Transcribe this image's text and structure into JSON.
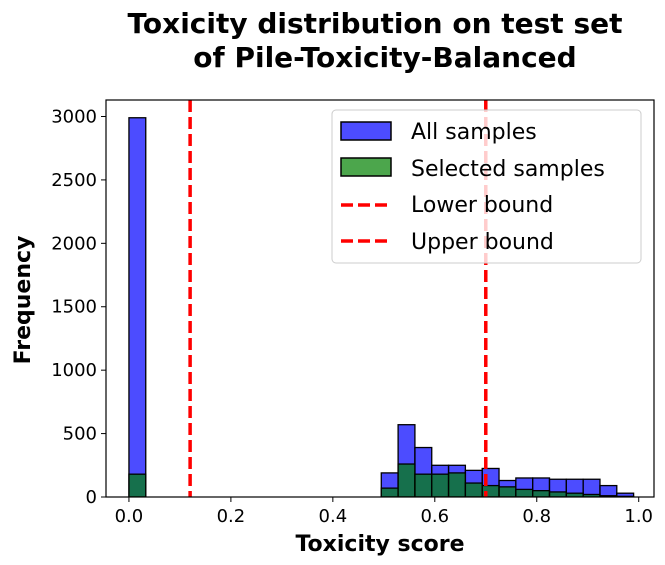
{
  "chart_data": {
    "type": "bar",
    "title_lines": [
      "Toxicity distribution on test set",
      "of Pile-Toxicity-Balanced"
    ],
    "xlabel": "Toxicity score",
    "ylabel": "Frequency",
    "xlim": [
      -0.045,
      1.03
    ],
    "ylim": [
      0,
      3130
    ],
    "xticks": [
      0.0,
      0.2,
      0.4,
      0.6,
      0.8,
      1.0
    ],
    "xtick_labels": [
      "0.0",
      "0.2",
      "0.4",
      "0.6",
      "0.8",
      "1.0"
    ],
    "yticks": [
      0,
      500,
      1000,
      1500,
      2000,
      2500,
      3000
    ],
    "ytick_labels": [
      "0",
      "500",
      "1000",
      "1500",
      "2000",
      "2500",
      "3000"
    ],
    "legend_position": "top-right",
    "bin_edges": [
      0.0,
      0.033,
      0.066,
      0.099,
      0.132,
      0.165,
      0.198,
      0.231,
      0.264,
      0.297,
      0.33,
      0.363,
      0.396,
      0.429,
      0.462,
      0.495,
      0.528,
      0.561,
      0.594,
      0.627,
      0.66,
      0.693,
      0.726,
      0.759,
      0.792,
      0.825,
      0.858,
      0.891,
      0.924,
      0.957,
      0.99
    ],
    "series": [
      {
        "name": "All samples",
        "color": "#0000ff",
        "values": [
          2990,
          0,
          0,
          0,
          0,
          0,
          0,
          0,
          0,
          0,
          0,
          0,
          0,
          0,
          0,
          190,
          570,
          390,
          250,
          250,
          210,
          225,
          130,
          150,
          150,
          140,
          140,
          140,
          90,
          30
        ]
      },
      {
        "name": "Selected samples",
        "color": "#008000",
        "values": [
          180,
          0,
          0,
          0,
          0,
          0,
          0,
          0,
          0,
          0,
          0,
          0,
          0,
          0,
          0,
          70,
          260,
          180,
          180,
          190,
          110,
          90,
          80,
          60,
          50,
          40,
          30,
          20,
          10,
          5
        ]
      }
    ],
    "reference_lines": [
      {
        "name": "Lower bound",
        "x": 0.12,
        "color": "#ff0000",
        "style": "dashed"
      },
      {
        "name": "Upper bound",
        "x": 0.7,
        "color": "#ff0000",
        "style": "dashed"
      }
    ]
  }
}
